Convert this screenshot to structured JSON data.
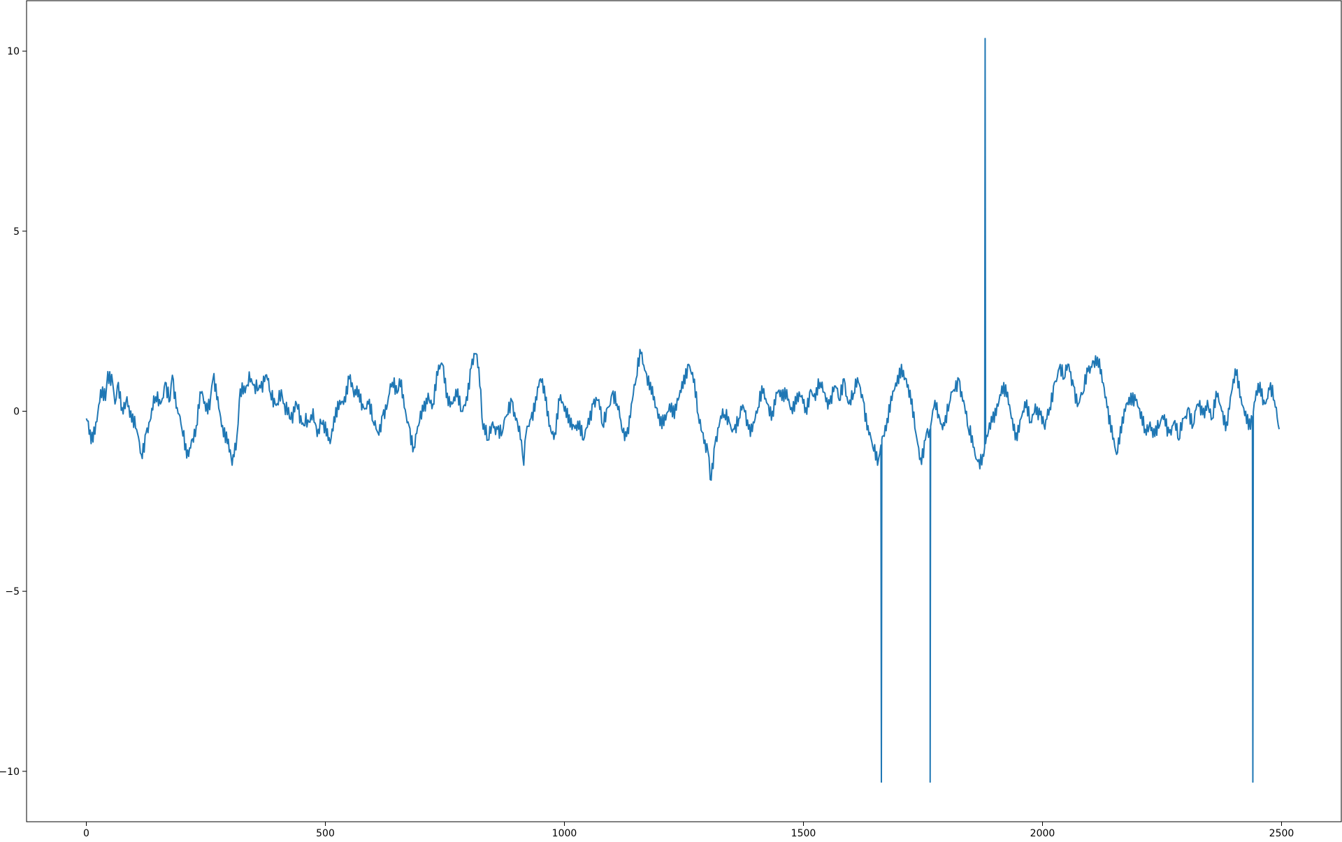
{
  "chart_data": {
    "type": "line",
    "title": "",
    "xlabel": "",
    "ylabel": "",
    "xlim": [
      -125,
      2625
    ],
    "ylim": [
      -11.4,
      11.4
    ],
    "x_ticks": [
      0,
      500,
      1000,
      1500,
      2000,
      2500
    ],
    "x_tick_labels": [
      "0",
      "500",
      "1000",
      "1500",
      "2000",
      "2500"
    ],
    "y_ticks": [
      -10,
      -5,
      0,
      5,
      10
    ],
    "y_tick_labels": [
      "−10",
      "−5",
      "0",
      "5",
      "10"
    ],
    "grid": false,
    "legend": "none",
    "line_color": "#1f77b4",
    "series": [
      {
        "values_step": 5,
        "spikes": [
          {
            "x": 1663,
            "y": -10.3
          },
          {
            "x": 1765,
            "y": -10.3
          },
          {
            "x": 1880,
            "y": 10.35
          },
          {
            "x": 2440,
            "y": -10.3
          }
        ],
        "points": [
          [
            0,
            -0.2
          ],
          [
            10,
            -0.9
          ],
          [
            20,
            -0.3
          ],
          [
            30,
            0.6
          ],
          [
            40,
            0.3
          ],
          [
            45,
            1.1
          ],
          [
            55,
            0.8
          ],
          [
            60,
            0.2
          ],
          [
            65,
            0.7
          ],
          [
            75,
            0.1
          ],
          [
            85,
            0.4
          ],
          [
            95,
            -0.3
          ],
          [
            105,
            -0.5
          ],
          [
            115,
            -1.2
          ],
          [
            125,
            -0.6
          ],
          [
            135,
            -0.2
          ],
          [
            145,
            0.4
          ],
          [
            155,
            0.2
          ],
          [
            165,
            0.8
          ],
          [
            175,
            0.3
          ],
          [
            180,
            1.0
          ],
          [
            190,
            0.1
          ],
          [
            200,
            -0.5
          ],
          [
            210,
            -1.3
          ],
          [
            220,
            -0.8
          ],
          [
            230,
            -0.4
          ],
          [
            240,
            0.5
          ],
          [
            250,
            0.0
          ],
          [
            260,
            0.4
          ],
          [
            265,
            0.9
          ],
          [
            275,
            0.4
          ],
          [
            285,
            -0.4
          ],
          [
            295,
            -0.9
          ],
          [
            305,
            -1.5
          ],
          [
            315,
            -0.7
          ],
          [
            320,
            0.3
          ],
          [
            330,
            0.7
          ],
          [
            345,
            0.9
          ],
          [
            360,
            0.6
          ],
          [
            375,
            1.0
          ],
          [
            385,
            0.5
          ],
          [
            395,
            0.2
          ],
          [
            410,
            0.4
          ],
          [
            425,
            -0.2
          ],
          [
            440,
            0.2
          ],
          [
            455,
            -0.4
          ],
          [
            470,
            -0.1
          ],
          [
            485,
            -0.5
          ],
          [
            500,
            -0.3
          ],
          [
            510,
            -0.9
          ],
          [
            520,
            -0.3
          ],
          [
            530,
            0.3
          ],
          [
            540,
            0.4
          ],
          [
            550,
            0.9
          ],
          [
            560,
            0.4
          ],
          [
            570,
            0.6
          ],
          [
            580,
            0.1
          ],
          [
            590,
            0.2
          ],
          [
            600,
            -0.3
          ],
          [
            610,
            -0.6
          ],
          [
            620,
            -0.1
          ],
          [
            630,
            0.2
          ],
          [
            640,
            0.8
          ],
          [
            650,
            0.5
          ],
          [
            655,
            0.9
          ],
          [
            665,
            0.1
          ],
          [
            675,
            -0.4
          ],
          [
            685,
            -1.0
          ],
          [
            695,
            -0.4
          ],
          [
            705,
            0.0
          ],
          [
            715,
            0.5
          ],
          [
            725,
            0.2
          ],
          [
            735,
            1.0
          ],
          [
            745,
            1.3
          ],
          [
            755,
            0.5
          ],
          [
            765,
            0.2
          ],
          [
            775,
            0.4
          ],
          [
            785,
            0.0
          ],
          [
            795,
            0.4
          ],
          [
            805,
            1.2
          ],
          [
            815,
            1.6
          ],
          [
            825,
            0.6
          ],
          [
            830,
            -0.5
          ],
          [
            840,
            -0.8
          ],
          [
            850,
            -0.3
          ],
          [
            860,
            -0.5
          ],
          [
            870,
            -0.6
          ],
          [
            880,
            -0.1
          ],
          [
            890,
            0.3
          ],
          [
            900,
            -0.2
          ],
          [
            910,
            -0.8
          ],
          [
            915,
            -1.5
          ],
          [
            920,
            -0.6
          ],
          [
            930,
            -0.2
          ],
          [
            940,
            0.4
          ],
          [
            950,
            0.9
          ],
          [
            960,
            0.3
          ],
          [
            970,
            -0.4
          ],
          [
            980,
            -0.6
          ],
          [
            990,
            0.3
          ],
          [
            1000,
            0.0
          ],
          [
            1010,
            -0.1
          ],
          [
            1020,
            -0.4
          ],
          [
            1030,
            -0.5
          ],
          [
            1040,
            -0.8
          ],
          [
            1050,
            -0.2
          ],
          [
            1060,
            0.2
          ],
          [
            1070,
            0.3
          ],
          [
            1080,
            -0.4
          ],
          [
            1090,
            0.1
          ],
          [
            1100,
            0.5
          ],
          [
            1110,
            0.2
          ],
          [
            1120,
            -0.5
          ],
          [
            1130,
            -0.7
          ],
          [
            1140,
            0.2
          ],
          [
            1150,
            0.9
          ],
          [
            1160,
            1.6
          ],
          [
            1170,
            1.1
          ],
          [
            1180,
            0.8
          ],
          [
            1190,
            0.1
          ],
          [
            1200,
            -0.4
          ],
          [
            1210,
            -0.1
          ],
          [
            1220,
            0.2
          ],
          [
            1230,
            -0.2
          ],
          [
            1240,
            0.4
          ],
          [
            1250,
            1.0
          ],
          [
            1260,
            1.3
          ],
          [
            1270,
            0.8
          ],
          [
            1280,
            -0.1
          ],
          [
            1290,
            -0.6
          ],
          [
            1300,
            -1.1
          ],
          [
            1305,
            -1.9
          ],
          [
            1315,
            -0.9
          ],
          [
            1325,
            -0.3
          ],
          [
            1335,
            -0.1
          ],
          [
            1345,
            -0.3
          ],
          [
            1355,
            -0.5
          ],
          [
            1365,
            -0.2
          ],
          [
            1375,
            0.1
          ],
          [
            1385,
            -0.5
          ],
          [
            1395,
            -0.3
          ],
          [
            1405,
            0.1
          ],
          [
            1415,
            0.5
          ],
          [
            1425,
            0.2
          ],
          [
            1435,
            0.0
          ],
          [
            1445,
            0.5
          ],
          [
            1455,
            0.3
          ],
          [
            1465,
            0.6
          ],
          [
            1475,
            0.1
          ],
          [
            1485,
            0.2
          ],
          [
            1495,
            0.4
          ],
          [
            1505,
            0.1
          ],
          [
            1515,
            0.6
          ],
          [
            1525,
            0.3
          ],
          [
            1535,
            0.8
          ],
          [
            1545,
            0.5
          ],
          [
            1555,
            0.2
          ],
          [
            1565,
            0.7
          ],
          [
            1575,
            0.3
          ],
          [
            1585,
            0.9
          ],
          [
            1595,
            0.2
          ],
          [
            1605,
            0.5
          ],
          [
            1615,
            0.8
          ],
          [
            1625,
            0.3
          ],
          [
            1635,
            -0.4
          ],
          [
            1645,
            -1.0
          ],
          [
            1655,
            -1.5
          ],
          [
            1665,
            -0.7
          ],
          [
            1675,
            -0.2
          ],
          [
            1685,
            0.3
          ],
          [
            1695,
            0.7
          ],
          [
            1705,
            1.3
          ],
          [
            1715,
            0.9
          ],
          [
            1725,
            0.2
          ],
          [
            1735,
            -0.6
          ],
          [
            1745,
            -1.3
          ],
          [
            1755,
            -0.8
          ],
          [
            1765,
            -0.5
          ],
          [
            1775,
            0.3
          ],
          [
            1785,
            -0.2
          ],
          [
            1795,
            -0.4
          ],
          [
            1805,
            0.2
          ],
          [
            1815,
            0.6
          ],
          [
            1825,
            0.9
          ],
          [
            1835,
            0.3
          ],
          [
            1845,
            -0.5
          ],
          [
            1855,
            -1.0
          ],
          [
            1865,
            -1.4
          ],
          [
            1875,
            -1.2
          ],
          [
            1885,
            -0.7
          ],
          [
            1895,
            -0.3
          ],
          [
            1905,
            0.2
          ],
          [
            1915,
            0.7
          ],
          [
            1925,
            0.4
          ],
          [
            1935,
            -0.2
          ],
          [
            1945,
            -0.6
          ],
          [
            1955,
            -0.2
          ],
          [
            1965,
            0.1
          ],
          [
            1975,
            -0.3
          ],
          [
            1985,
            0.2
          ],
          [
            1995,
            -0.1
          ],
          [
            2005,
            -0.5
          ],
          [
            2015,
            0.1
          ],
          [
            2025,
            0.8
          ],
          [
            2035,
            1.2
          ],
          [
            2045,
            0.9
          ],
          [
            2055,
            1.3
          ],
          [
            2065,
            0.7
          ],
          [
            2075,
            0.2
          ],
          [
            2085,
            0.5
          ],
          [
            2095,
            1.1
          ],
          [
            2105,
            1.4
          ],
          [
            2115,
            1.5
          ],
          [
            2125,
            0.8
          ],
          [
            2135,
            0.1
          ],
          [
            2145,
            -0.4
          ],
          [
            2155,
            -1.2
          ],
          [
            2165,
            -0.6
          ],
          [
            2175,
            0.2
          ],
          [
            2185,
            0.5
          ],
          [
            2195,
            0.3
          ],
          [
            2205,
            -0.2
          ],
          [
            2215,
            -0.5
          ],
          [
            2225,
            -0.3
          ],
          [
            2235,
            -0.7
          ],
          [
            2245,
            -0.4
          ],
          [
            2255,
            -0.1
          ],
          [
            2265,
            -0.6
          ],
          [
            2275,
            -0.3
          ],
          [
            2285,
            -0.8
          ],
          [
            2295,
            -0.2
          ],
          [
            2305,
            0.1
          ],
          [
            2315,
            -0.4
          ],
          [
            2325,
            0.2
          ],
          [
            2335,
            -0.1
          ],
          [
            2345,
            0.3
          ],
          [
            2355,
            -0.2
          ],
          [
            2365,
            0.4
          ],
          [
            2375,
            0.0
          ],
          [
            2385,
            -0.3
          ],
          [
            2395,
            0.5
          ],
          [
            2405,
            1.0
          ],
          [
            2415,
            0.4
          ],
          [
            2425,
            0.0
          ],
          [
            2435,
            -0.5
          ],
          [
            2445,
            0.3
          ],
          [
            2455,
            0.8
          ],
          [
            2465,
            0.2
          ],
          [
            2475,
            0.6
          ],
          [
            2485,
            0.3
          ],
          [
            2495,
            -0.5
          ]
        ]
      }
    ]
  }
}
